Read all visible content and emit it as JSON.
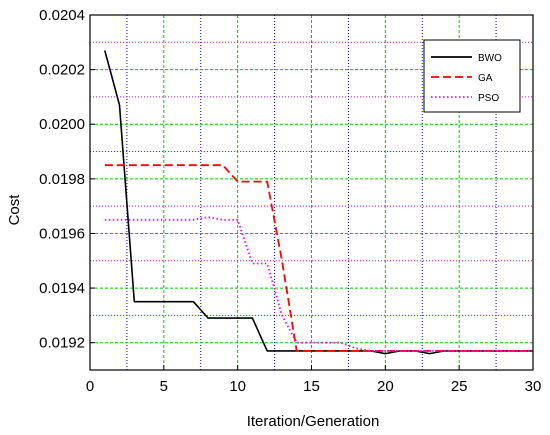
{
  "chart_data": {
    "type": "line",
    "title": "",
    "xlabel": "Iteration/Generation",
    "ylabel": "Cost",
    "xlim": [
      0,
      30
    ],
    "ylim": [
      0.0191,
      0.0204
    ],
    "x_ticks": [
      0,
      5,
      10,
      15,
      20,
      25,
      30
    ],
    "x_tick_labels": [
      "0",
      "5",
      "10",
      "15",
      "20",
      "25",
      "30"
    ],
    "y_ticks": [
      0.0192,
      0.0194,
      0.0196,
      0.0198,
      0.02,
      0.0202,
      0.0204
    ],
    "y_tick_labels": [
      "0.0192",
      "0.0194",
      "0.0196",
      "0.0198",
      "0.0200",
      "0.0202",
      "0.0204"
    ],
    "grid": true,
    "legend_position": "top-right",
    "series": [
      {
        "name": "BWO",
        "color": "#000000",
        "style": "solid",
        "x": [
          1,
          2,
          3,
          4,
          5,
          6,
          7,
          8,
          9,
          10,
          11,
          12,
          13,
          14,
          15,
          16,
          17,
          18,
          19,
          20,
          21,
          22,
          23,
          24,
          25,
          26,
          27,
          28,
          29,
          30
        ],
        "y": [
          0.02027,
          0.02007,
          0.01935,
          0.01935,
          0.01935,
          0.01935,
          0.01935,
          0.01929,
          0.01929,
          0.01929,
          0.01929,
          0.01917,
          0.01917,
          0.01917,
          0.01917,
          0.01917,
          0.01917,
          0.01917,
          0.01917,
          0.01916,
          0.01917,
          0.01917,
          0.01916,
          0.01917,
          0.01917,
          0.01917,
          0.01917,
          0.01917,
          0.01917,
          0.01917
        ]
      },
      {
        "name": "GA",
        "color": "#ff0000",
        "style": "dashed",
        "x": [
          1,
          2,
          3,
          4,
          5,
          6,
          7,
          8,
          9,
          10,
          11,
          12,
          13,
          14,
          15,
          16,
          17,
          18,
          19,
          20,
          21,
          22,
          23,
          24,
          25,
          26,
          27,
          28,
          29,
          30
        ],
        "y": [
          0.01985,
          0.01985,
          0.01985,
          0.01985,
          0.01985,
          0.01985,
          0.01985,
          0.01985,
          0.01985,
          0.01979,
          0.01979,
          0.01979,
          0.0195,
          0.01917,
          0.01917,
          0.01917,
          0.01917,
          0.01917,
          0.01917,
          0.01917,
          0.01917,
          0.01917,
          0.01917,
          0.01917,
          0.01917,
          0.01917,
          0.01917,
          0.01917,
          0.01917,
          0.01917
        ]
      },
      {
        "name": "PSO",
        "color": "#ff00ff",
        "style": "dotted",
        "x": [
          1,
          2,
          3,
          4,
          5,
          6,
          7,
          8,
          9,
          10,
          11,
          12,
          13,
          14,
          15,
          16,
          17,
          18,
          19,
          20,
          21,
          22,
          23,
          24,
          25,
          26,
          27,
          28,
          29,
          30
        ],
        "y": [
          0.01965,
          0.01965,
          0.01965,
          0.01965,
          0.01965,
          0.01965,
          0.01965,
          0.01966,
          0.01965,
          0.01965,
          0.01949,
          0.01949,
          0.0193,
          0.0192,
          0.0192,
          0.0192,
          0.0192,
          0.01918,
          0.01917,
          0.01917,
          0.01917,
          0.01917,
          0.01917,
          0.01917,
          0.01917,
          0.01917,
          0.01917,
          0.01917,
          0.01917,
          0.01917
        ]
      }
    ]
  }
}
